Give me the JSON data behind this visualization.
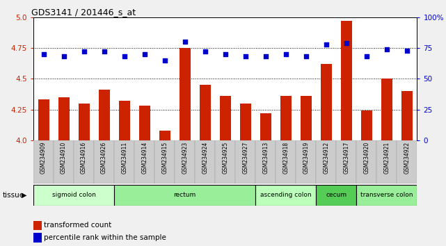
{
  "title": "GDS3141 / 201446_s_at",
  "samples": [
    "GSM234909",
    "GSM234910",
    "GSM234916",
    "GSM234926",
    "GSM234911",
    "GSM234914",
    "GSM234915",
    "GSM234923",
    "GSM234924",
    "GSM234925",
    "GSM234927",
    "GSM234913",
    "GSM234918",
    "GSM234919",
    "GSM234912",
    "GSM234917",
    "GSM234920",
    "GSM234921",
    "GSM234922"
  ],
  "bar_values": [
    4.33,
    4.35,
    4.3,
    4.41,
    4.32,
    4.28,
    4.08,
    4.75,
    4.45,
    4.36,
    4.3,
    4.22,
    4.36,
    4.36,
    4.62,
    4.97,
    4.24,
    4.5,
    4.4
  ],
  "dot_values": [
    70,
    68,
    72,
    72,
    68,
    70,
    65,
    80,
    72,
    70,
    68,
    68,
    70,
    68,
    78,
    79,
    68,
    74,
    73
  ],
  "bar_color": "#cc2200",
  "dot_color": "#0000cc",
  "ylim_left": [
    4.0,
    5.0
  ],
  "ylim_right": [
    0,
    100
  ],
  "yticks_left": [
    4.0,
    4.25,
    4.5,
    4.75,
    5.0
  ],
  "yticks_right": [
    0,
    25,
    50,
    75,
    100
  ],
  "ytick_labels_right": [
    "0",
    "25",
    "50",
    "75",
    "100%"
  ],
  "hlines": [
    4.25,
    4.5,
    4.75
  ],
  "tissue_groups": [
    {
      "label": "sigmoid colon",
      "start": 0,
      "end": 3,
      "color": "#ccffcc"
    },
    {
      "label": "rectum",
      "start": 4,
      "end": 10,
      "color": "#99ee99"
    },
    {
      "label": "ascending colon",
      "start": 11,
      "end": 13,
      "color": "#bbffbb"
    },
    {
      "label": "cecum",
      "start": 14,
      "end": 15,
      "color": "#55cc55"
    },
    {
      "label": "transverse colon",
      "start": 16,
      "end": 18,
      "color": "#99ee99"
    }
  ],
  "tissue_label": "tissue",
  "legend_bar_label": "transformed count",
  "legend_dot_label": "percentile rank within the sample",
  "fig_bg": "#f0f0f0",
  "plot_bg": "#ffffff",
  "xtick_bg": "#cccccc"
}
